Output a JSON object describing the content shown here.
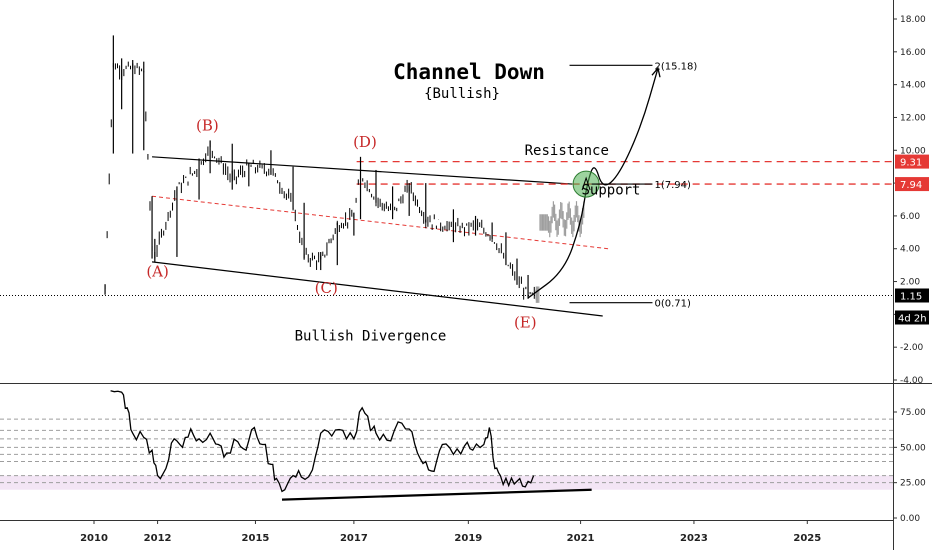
{
  "chart_data": [
    {
      "type": "candlestick",
      "title": "Channel Down",
      "subtitle": "{Bullish}",
      "y_ticks": [
        "18.00",
        "16.00",
        "14.00",
        "12.00",
        "10.00",
        "8.00",
        "6.00",
        "4.00",
        "2.00",
        "0.00",
        "-2.00",
        "-4.00"
      ],
      "ylim": [
        -4.0,
        18.8
      ],
      "x_ticks": [
        "2010",
        "2012",
        "2015",
        "2017",
        "2019",
        "2021",
        "2023",
        "2025"
      ],
      "x_tick_values": [
        2010.0,
        2011.15,
        2012.92,
        2014.7,
        2016.77,
        2018.8,
        2020.85,
        2022.9
      ],
      "xlim": [
        2008.3,
        2024.45
      ],
      "price_series": [
        {
          "x": 2010.2,
          "open": 1.5,
          "high": 1.8,
          "low": 1.2,
          "close": 1.6
        },
        {
          "x": 2010.35,
          "open": 14.8,
          "high": 17.0,
          "low": 9.8,
          "close": 15.2
        },
        {
          "x": 2010.5,
          "open": 15.2,
          "high": 15.6,
          "low": 12.5,
          "close": 14.9
        },
        {
          "x": 2010.7,
          "open": 14.9,
          "high": 15.5,
          "low": 9.8,
          "close": 15.0
        },
        {
          "x": 2010.9,
          "open": 15.0,
          "high": 15.4,
          "low": 10.0,
          "close": 14.8
        },
        {
          "x": 2011.05,
          "open": 6.8,
          "high": 7.2,
          "low": 3.4,
          "close": 4.0
        },
        {
          "x": 2011.1,
          "open": 4.0,
          "high": 4.6,
          "low": 3.2,
          "close": 3.6
        },
        {
          "x": 2011.5,
          "open": 3.6,
          "high": 7.8,
          "low": 3.5,
          "close": 7.6
        },
        {
          "x": 2011.9,
          "open": 7.6,
          "high": 9.5,
          "low": 7.0,
          "close": 9.0
        },
        {
          "x": 2012.1,
          "open": 9.0,
          "high": 10.6,
          "low": 8.6,
          "close": 10.2
        },
        {
          "x": 2012.5,
          "open": 10.2,
          "high": 10.4,
          "low": 7.6,
          "close": 8.2
        },
        {
          "x": 2012.8,
          "open": 8.2,
          "high": 9.2,
          "low": 7.8,
          "close": 9.0
        },
        {
          "x": 2013.2,
          "open": 9.0,
          "high": 10.0,
          "low": 8.5,
          "close": 8.8
        },
        {
          "x": 2013.6,
          "open": 8.8,
          "high": 9.0,
          "low": 6.4,
          "close": 6.6
        },
        {
          "x": 2013.8,
          "open": 6.6,
          "high": 6.8,
          "low": 3.4,
          "close": 3.6
        },
        {
          "x": 2014.1,
          "open": 3.6,
          "high": 3.8,
          "low": 2.7,
          "close": 3.2
        },
        {
          "x": 2014.4,
          "open": 3.2,
          "high": 5.6,
          "low": 3.0,
          "close": 5.4
        },
        {
          "x": 2014.7,
          "open": 5.4,
          "high": 6.2,
          "low": 4.8,
          "close": 6.0
        },
        {
          "x": 2014.82,
          "open": 6.0,
          "high": 9.6,
          "low": 5.8,
          "close": 8.6
        },
        {
          "x": 2015.1,
          "open": 8.6,
          "high": 8.8,
          "low": 6.8,
          "close": 7.0
        },
        {
          "x": 2015.4,
          "open": 7.0,
          "high": 7.8,
          "low": 5.8,
          "close": 6.2
        },
        {
          "x": 2015.7,
          "open": 6.2,
          "high": 8.0,
          "low": 6.0,
          "close": 7.8
        },
        {
          "x": 2016.0,
          "open": 7.8,
          "high": 8.0,
          "low": 5.6,
          "close": 5.8
        },
        {
          "x": 2016.5,
          "open": 5.8,
          "high": 6.4,
          "low": 4.4,
          "close": 5.2
        },
        {
          "x": 2016.9,
          "open": 5.2,
          "high": 6.0,
          "low": 4.8,
          "close": 5.4
        },
        {
          "x": 2017.2,
          "open": 5.4,
          "high": 5.6,
          "low": 4.6,
          "close": 4.8
        },
        {
          "x": 2017.45,
          "open": 4.8,
          "high": 5.0,
          "low": 3.0,
          "close": 3.2
        },
        {
          "x": 2017.65,
          "open": 3.2,
          "high": 3.4,
          "low": 1.8,
          "close": 2.2
        },
        {
          "x": 2017.85,
          "open": 2.2,
          "high": 2.4,
          "low": 1.0,
          "close": 1.1
        },
        {
          "x": 2018.0,
          "open": 1.1,
          "high": 1.5,
          "low": 0.9,
          "close": 1.15
        }
      ],
      "projection_path": [
        {
          "x": 2017.85,
          "y": 1.0
        },
        {
          "x": 2018.5,
          "y": 2.6
        },
        {
          "x": 2018.8,
          "y": 5.5
        },
        {
          "x": 2018.92,
          "y": 8.0
        },
        {
          "x": 2019.05,
          "y": 9.3
        },
        {
          "x": 2019.2,
          "y": 7.6
        },
        {
          "x": 2019.5,
          "y": 8.5
        },
        {
          "x": 2019.9,
          "y": 11.5
        },
        {
          "x": 2020.2,
          "y": 15.0
        }
      ],
      "channel_lines": [
        {
          "from": {
            "x": 2011.05,
            "y": 9.6
          },
          "to": {
            "x": 2018.65,
            "y": 7.94
          }
        },
        {
          "from": {
            "x": 2011.05,
            "y": 3.2
          },
          "to": {
            "x": 2019.2,
            "y": -0.1
          }
        }
      ],
      "mid_channel_line": {
        "from": {
          "x": 2011.05,
          "y": 7.2
        },
        "to": {
          "x": 2019.3,
          "y": 4.0
        }
      },
      "levels": [
        {
          "value": 9.31,
          "label": "9.31",
          "color": "#e53935",
          "style": "dashed"
        },
        {
          "value": 7.94,
          "label": "7.94",
          "color": "#e53935",
          "style": "dashed"
        },
        {
          "value": 1.15,
          "label": "1.15",
          "color": "#000000",
          "style": "dotted"
        }
      ],
      "fib_levels": [
        {
          "value": 15.18,
          "label": "2(15.18)"
        },
        {
          "value": 7.94,
          "label": "1(7.94)"
        },
        {
          "value": 0.71,
          "label": "0(0.71)"
        }
      ],
      "wave_labels": [
        {
          "label": "(A)",
          "x": 2011.15,
          "y": 2.3
        },
        {
          "label": "(B)",
          "x": 2012.05,
          "y": 11.2
        },
        {
          "label": "(C)",
          "x": 2014.2,
          "y": 1.3
        },
        {
          "label": "(D)",
          "x": 2014.9,
          "y": 10.2
        },
        {
          "label": "(E)",
          "x": 2017.8,
          "y": -0.8
        }
      ],
      "annotations": [
        {
          "text": "Resistance",
          "x": 2018.55,
          "y": 9.7
        },
        {
          "text": "Support",
          "x": 2019.35,
          "y": 7.3
        },
        {
          "text": "Bullish Divergence",
          "x": 2015.0,
          "y": -1.6
        }
      ],
      "highlight": {
        "x": 2018.9,
        "y": 7.94,
        "color": "#4caf50"
      },
      "countdown_label": "4d 2h",
      "price_label_color": "#e53935"
    },
    {
      "type": "line",
      "title": "",
      "y_ticks": [
        "75.00",
        "50.00",
        "25.00",
        "0.00"
      ],
      "ylim": [
        -2,
        95
      ],
      "band": [
        20,
        30
      ],
      "band_color": "#f3e5f5",
      "guide_levels": [
        25,
        30,
        40,
        45,
        50,
        56,
        62,
        70
      ],
      "series": [
        {
          "values": [
            {
              "x": 2010.3,
              "y": 90
            },
            {
              "x": 2010.5,
              "y": 89
            },
            {
              "x": 2010.6,
              "y": 78
            },
            {
              "x": 2010.7,
              "y": 60
            },
            {
              "x": 2010.9,
              "y": 57
            },
            {
              "x": 2011.05,
              "y": 48
            },
            {
              "x": 2011.15,
              "y": 30
            },
            {
              "x": 2011.3,
              "y": 35
            },
            {
              "x": 2011.45,
              "y": 56
            },
            {
              "x": 2011.6,
              "y": 50
            },
            {
              "x": 2011.75,
              "y": 63
            },
            {
              "x": 2011.9,
              "y": 56
            },
            {
              "x": 2012.1,
              "y": 60
            },
            {
              "x": 2012.25,
              "y": 52
            },
            {
              "x": 2012.4,
              "y": 46
            },
            {
              "x": 2012.6,
              "y": 54
            },
            {
              "x": 2012.75,
              "y": 48
            },
            {
              "x": 2012.9,
              "y": 64
            },
            {
              "x": 2013.05,
              "y": 52
            },
            {
              "x": 2013.2,
              "y": 38
            },
            {
              "x": 2013.3,
              "y": 28
            },
            {
              "x": 2013.45,
              "y": 20
            },
            {
              "x": 2013.6,
              "y": 30
            },
            {
              "x": 2013.75,
              "y": 29
            },
            {
              "x": 2013.95,
              "y": 34
            },
            {
              "x": 2014.1,
              "y": 60
            },
            {
              "x": 2014.3,
              "y": 58
            },
            {
              "x": 2014.5,
              "y": 62
            },
            {
              "x": 2014.7,
              "y": 56
            },
            {
              "x": 2014.85,
              "y": 78
            },
            {
              "x": 2015.0,
              "y": 62
            },
            {
              "x": 2015.1,
              "y": 60
            },
            {
              "x": 2015.3,
              "y": 55
            },
            {
              "x": 2015.5,
              "y": 68
            },
            {
              "x": 2015.7,
              "y": 63
            },
            {
              "x": 2015.85,
              "y": 46
            },
            {
              "x": 2016.0,
              "y": 40
            },
            {
              "x": 2016.15,
              "y": 33
            },
            {
              "x": 2016.3,
              "y": 52
            },
            {
              "x": 2016.5,
              "y": 45
            },
            {
              "x": 2016.7,
              "y": 51
            },
            {
              "x": 2016.85,
              "y": 48
            },
            {
              "x": 2017.05,
              "y": 52
            },
            {
              "x": 2017.15,
              "y": 64
            },
            {
              "x": 2017.25,
              "y": 35
            },
            {
              "x": 2017.35,
              "y": 30
            },
            {
              "x": 2017.5,
              "y": 23
            },
            {
              "x": 2017.65,
              "y": 26
            },
            {
              "x": 2017.8,
              "y": 22
            },
            {
              "x": 2017.95,
              "y": 30
            }
          ]
        }
      ],
      "divergence_line": {
        "from": {
          "x": 2013.4,
          "y": 13
        },
        "to": {
          "x": 2019.0,
          "y": 20
        }
      }
    }
  ]
}
